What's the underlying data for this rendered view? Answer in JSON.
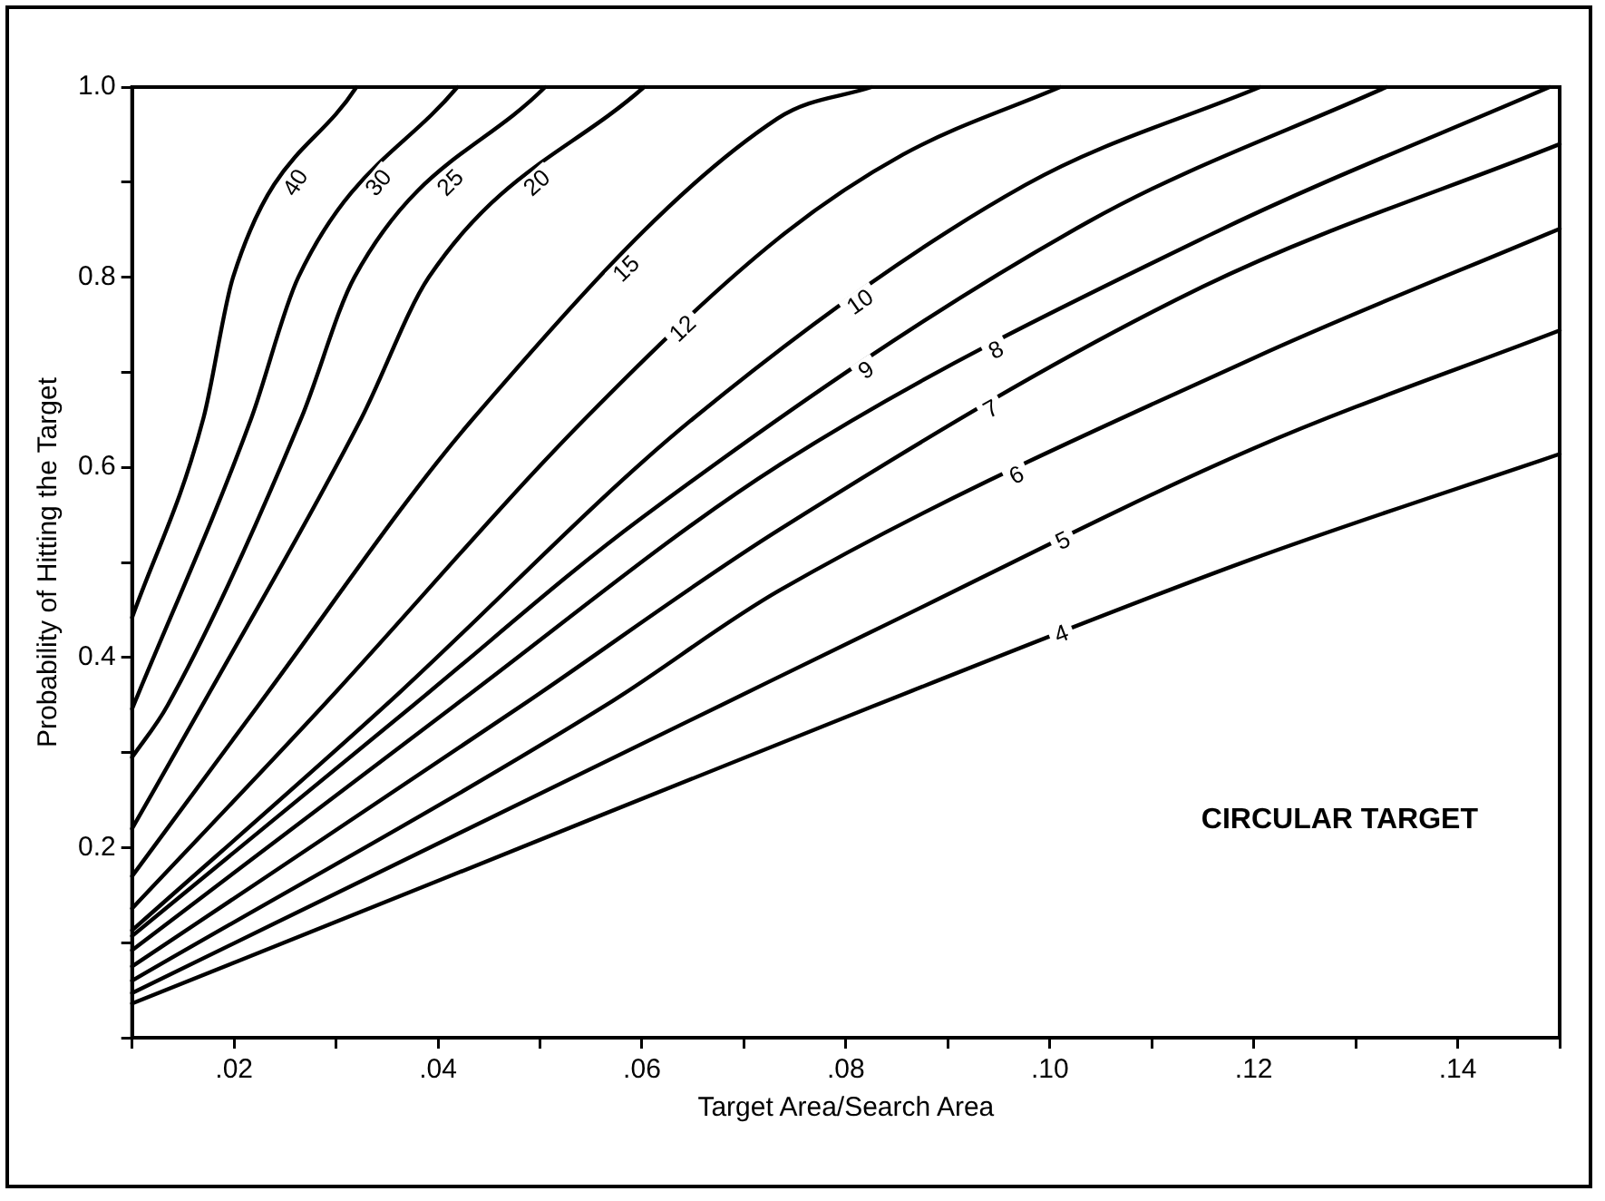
{
  "chart_data": {
    "type": "line",
    "xlabel": "Target Area/Search Area",
    "ylabel": "Probability of Hitting the Target",
    "annotations": [
      "CIRCULAR TARGET"
    ],
    "xlim": [
      0.01,
      0.15
    ],
    "ylim": [
      0,
      1
    ],
    "xticks": [
      {
        "value": 0.01,
        "label": null
      },
      {
        "value": 0.02,
        "label": ".02"
      },
      {
        "value": 0.03,
        "label": null
      },
      {
        "value": 0.04,
        "label": ".04"
      },
      {
        "value": 0.05,
        "label": null
      },
      {
        "value": 0.06,
        "label": ".06"
      },
      {
        "value": 0.07,
        "label": null
      },
      {
        "value": 0.08,
        "label": ".08"
      },
      {
        "value": 0.09,
        "label": null
      },
      {
        "value": 0.1,
        "label": ".10"
      },
      {
        "value": 0.11,
        "label": null
      },
      {
        "value": 0.12,
        "label": ".12"
      },
      {
        "value": 0.13,
        "label": null
      },
      {
        "value": 0.14,
        "label": ".14"
      },
      {
        "value": 0.15,
        "label": null
      }
    ],
    "yticks": [
      {
        "value": 0,
        "label": null
      },
      {
        "value": 0.1,
        "label": null
      },
      0.2,
      {
        "value": 0.3,
        "label": null
      },
      0.4,
      {
        "value": 0.5,
        "label": null
      },
      0.6,
      {
        "value": 0.7,
        "label": null
      },
      0.8,
      {
        "value": 0.9,
        "label": null
      },
      {
        "value": 1,
        "label": "1.0"
      }
    ],
    "marker": "none",
    "series": [
      {
        "name": "4",
        "color": "#000000",
        "x": [
          0.01,
          0.04,
          0.0825,
          0.1197,
          0.15
        ],
        "values": [
          0.036,
          0.165,
          0.348,
          0.503,
          0.614
        ]
      },
      {
        "name": "5",
        "color": "#000000",
        "x": [
          0.01,
          0.0678,
          0.0825,
          0.12,
          0.15
        ],
        "values": [
          0.047,
          0.35,
          0.427,
          0.62,
          0.744
        ]
      },
      {
        "name": "6",
        "color": "#000000",
        "x": [
          0.01,
          0.0565,
          0.0734,
          0.12,
          0.15
        ],
        "values": [
          0.06,
          0.35,
          0.47,
          0.715,
          0.851
        ]
      },
      {
        "name": "7",
        "color": "#000000",
        "x": [
          0.01,
          0.0483,
          0.0734,
          0.115,
          0.15
        ],
        "values": [
          0.075,
          0.35,
          0.534,
          0.79,
          0.94
        ]
      },
      {
        "name": "8",
        "color": "#000000",
        "x": [
          0.01,
          0.0417,
          0.0734,
          0.116,
          0.149
        ],
        "values": [
          0.092,
          0.35,
          0.602,
          0.846,
          1.0
        ]
      },
      {
        "name": "9",
        "color": "#000000",
        "x": [
          0.01,
          0.0376,
          0.06,
          0.1039,
          0.133
        ],
        "values": [
          0.107,
          0.35,
          0.547,
          0.859,
          1.0
        ]
      },
      {
        "name": "10",
        "color": "#000000",
        "x": [
          0.01,
          0.0349,
          0.0651,
          0.0976,
          0.1206
        ],
        "values": [
          0.113,
          0.35,
          0.652,
          0.897,
          1.0
        ]
      },
      {
        "name": "12",
        "color": "#000000",
        "x": [
          0.01,
          0.0288,
          0.0545,
          0.0734,
          0.0856,
          0.101
        ],
        "values": [
          0.136,
          0.35,
          0.652,
          0.841,
          0.929,
          1.0
        ]
      },
      {
        "name": "15",
        "color": "#000000",
        "x": [
          0.01,
          0.0224,
          0.0435,
          0.0733,
          0.0825
        ],
        "values": [
          0.17,
          0.35,
          0.652,
          0.967,
          1.0
        ]
      },
      {
        "name": "20",
        "color": "#000000",
        "x": [
          0.01,
          0.0169,
          0.0325,
          0.0391,
          0.0602
        ],
        "values": [
          0.22,
          0.35,
          0.652,
          0.8,
          1.0
        ]
      },
      {
        "name": "25",
        "color": "#000000",
        "x": [
          0.01,
          0.0135,
          0.0266,
          0.0318,
          0.0505
        ],
        "values": [
          0.295,
          0.35,
          0.652,
          0.8,
          1.0
        ]
      },
      {
        "name": "30",
        "color": "#000000",
        "x": [
          0.01,
          0.0217,
          0.0263,
          0.0419
        ],
        "values": [
          0.346,
          0.652,
          0.8,
          1.0
        ]
      },
      {
        "name": "40",
        "color": "#000000",
        "x": [
          0.01,
          0.017,
          0.0199,
          0.032
        ],
        "values": [
          0.442,
          0.652,
          0.8,
          1.0
        ]
      }
    ]
  }
}
